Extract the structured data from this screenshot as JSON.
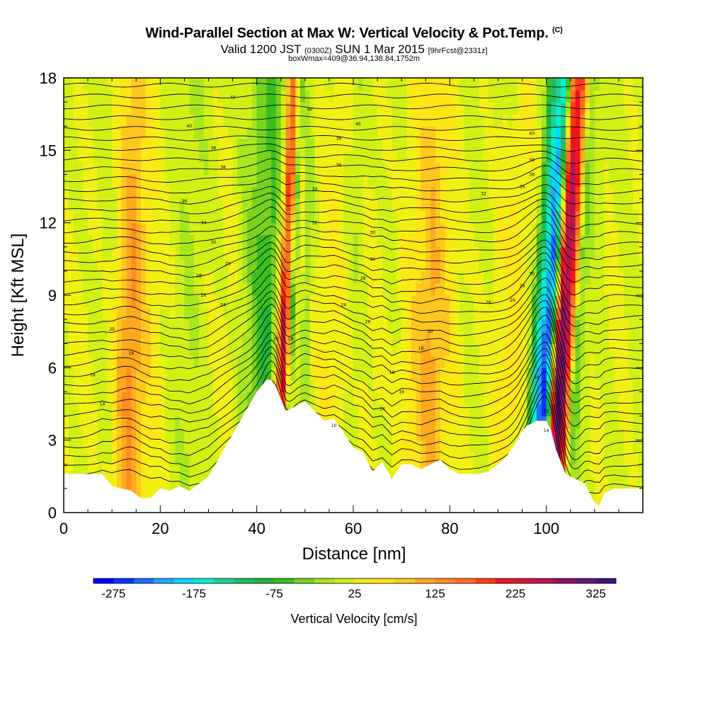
{
  "title": {
    "main": "Wind-Parallel Section at Max W: Vertical Velocity & Pot.Temp.",
    "main_sup": "(C)",
    "valid_a": "Valid 1200 JST",
    "valid_b": "(0300Z)",
    "valid_c": "SUN 1 Mar 2015",
    "valid_d": "[9hrFcst@2331z]",
    "box": "boxWmax=409@36.94,138.84,1752m"
  },
  "chart_data": {
    "type": "heatmap",
    "xlabel": "Distance [nm]",
    "ylabel": "Height [Kft MSL]",
    "xlim": [
      0,
      120
    ],
    "ylim": [
      0,
      18
    ],
    "xticks": [
      0,
      20,
      40,
      60,
      80,
      100
    ],
    "yticks": [
      0,
      3,
      6,
      9,
      12,
      15,
      18
    ],
    "colorbar": {
      "label": "Vertical Velocity [cm/s]",
      "tick_values": [
        -275,
        -175,
        -75,
        25,
        125,
        225,
        325
      ],
      "levels": [
        -300,
        -275,
        -250,
        -225,
        -200,
        -175,
        -150,
        -125,
        -100,
        -75,
        -50,
        -25,
        0,
        25,
        50,
        75,
        100,
        125,
        150,
        175,
        200,
        225,
        250,
        275,
        300,
        325,
        350
      ],
      "colors": [
        "#0000ff",
        "#0a32ff",
        "#1e6eff",
        "#1ea8ff",
        "#00d8ff",
        "#00f0d0",
        "#1ed296",
        "#1ebe64",
        "#1eb43c",
        "#3cbe1e",
        "#78d21e",
        "#aae61e",
        "#d2f014",
        "#f0f014",
        "#ffe614",
        "#ffc81e",
        "#ffaa1e",
        "#ff8c1e",
        "#ff6e1e",
        "#ff3c14",
        "#f0141e",
        "#d2143c",
        "#b41450",
        "#8c1464",
        "#641478",
        "#3c1478"
      ]
    },
    "field": {
      "x": [
        0,
        4,
        8,
        10,
        12,
        14,
        16,
        18,
        22,
        26,
        30,
        34,
        38,
        40,
        42,
        43,
        44,
        45,
        46,
        47,
        48,
        50,
        52,
        56,
        60,
        64,
        68,
        72,
        76,
        80,
        84,
        88,
        92,
        94,
        96,
        97,
        98,
        99,
        100,
        101,
        102,
        103,
        104,
        105,
        106,
        107,
        108,
        110,
        112,
        116,
        120
      ],
      "y": [
        0,
        1,
        2,
        3,
        4,
        5,
        6,
        7,
        8,
        9,
        10,
        11,
        12,
        13,
        14,
        15,
        16,
        17,
        18
      ],
      "w_profile": [
        30,
        35,
        15,
        40,
        110,
        140,
        100,
        60,
        20,
        0,
        20,
        40,
        -20,
        -60,
        -80,
        -40,
        60,
        240,
        180,
        -60,
        40,
        -20,
        40,
        60,
        10,
        40,
        20,
        70,
        120,
        60,
        20,
        30,
        70,
        60,
        20,
        -80,
        -160,
        -230,
        -270,
        -100,
        240,
        320,
        280,
        140,
        -40,
        -20,
        10,
        20,
        30,
        25,
        20
      ]
    },
    "terrain": {
      "x": [
        0,
        8,
        10,
        14,
        16,
        18,
        20,
        22,
        24,
        26,
        28,
        30,
        32,
        34,
        36,
        38,
        40,
        42,
        43,
        44,
        46,
        48,
        50,
        52,
        54,
        56,
        58,
        60,
        62,
        64,
        66,
        68,
        70,
        72,
        74,
        76,
        78,
        80,
        82,
        84,
        86,
        88,
        90,
        92,
        94,
        95,
        96,
        98,
        100,
        101,
        102,
        104,
        106,
        108,
        110,
        111,
        112,
        114,
        116,
        120
      ],
      "h": [
        1.6,
        1.6,
        1.1,
        0.9,
        0.6,
        0.6,
        1.0,
        0.9,
        1.1,
        0.9,
        1.2,
        1.5,
        2.2,
        2.9,
        3.6,
        4.3,
        5.0,
        5.5,
        5.5,
        5.2,
        4.2,
        4.4,
        4.6,
        4.2,
        3.8,
        3.9,
        3.3,
        2.7,
        2.5,
        1.7,
        2.1,
        1.4,
        2.0,
        2.0,
        1.8,
        2.0,
        2.2,
        1.8,
        1.6,
        1.6,
        1.6,
        1.7,
        2.0,
        2.4,
        3.0,
        3.4,
        3.6,
        3.8,
        3.8,
        3.4,
        2.6,
        1.6,
        1.4,
        1.2,
        0.4,
        0.3,
        0.8,
        1.0,
        1.0,
        1.0
      ]
    },
    "theta_labels": [
      {
        "x": 35,
        "y": 17.2,
        "text": "42"
      },
      {
        "x": 51,
        "y": 16.7,
        "text": "40"
      },
      {
        "x": 61,
        "y": 16.1,
        "text": "40"
      },
      {
        "x": 26,
        "y": 16.0,
        "text": "40"
      },
      {
        "x": 31,
        "y": 15.1,
        "text": "38"
      },
      {
        "x": 57,
        "y": 15.5,
        "text": "38"
      },
      {
        "x": 57,
        "y": 14.4,
        "text": "36"
      },
      {
        "x": 33,
        "y": 14.3,
        "text": "38"
      },
      {
        "x": 97,
        "y": 15.7,
        "text": "40"
      },
      {
        "x": 97,
        "y": 14.6,
        "text": "38"
      },
      {
        "x": 97,
        "y": 14.0,
        "text": "36"
      },
      {
        "x": 25,
        "y": 12.9,
        "text": "36"
      },
      {
        "x": 29,
        "y": 12.0,
        "text": "34"
      },
      {
        "x": 52,
        "y": 13.4,
        "text": "34"
      },
      {
        "x": 52,
        "y": 12.0,
        "text": "32"
      },
      {
        "x": 87,
        "y": 13.2,
        "text": "32"
      },
      {
        "x": 95,
        "y": 13.5,
        "text": "34"
      },
      {
        "x": 31,
        "y": 11.2,
        "text": "30"
      },
      {
        "x": 34,
        "y": 10.3,
        "text": "28"
      },
      {
        "x": 64,
        "y": 11.6,
        "text": "30"
      },
      {
        "x": 64,
        "y": 10.5,
        "text": "30"
      },
      {
        "x": 28,
        "y": 9.8,
        "text": "28"
      },
      {
        "x": 29,
        "y": 9.0,
        "text": "26"
      },
      {
        "x": 33,
        "y": 8.6,
        "text": "24"
      },
      {
        "x": 62,
        "y": 9.7,
        "text": "28"
      },
      {
        "x": 58,
        "y": 8.6,
        "text": "24"
      },
      {
        "x": 97,
        "y": 9.9,
        "text": "30"
      },
      {
        "x": 95,
        "y": 9.4,
        "text": "28"
      },
      {
        "x": 93,
        "y": 8.8,
        "text": "26"
      },
      {
        "x": 88,
        "y": 8.7,
        "text": "26"
      },
      {
        "x": 63,
        "y": 7.9,
        "text": "26"
      },
      {
        "x": 76,
        "y": 7.5,
        "text": "20"
      },
      {
        "x": 10,
        "y": 7.6,
        "text": "20"
      },
      {
        "x": 44,
        "y": 7.2,
        "text": "20"
      },
      {
        "x": 47,
        "y": 7.2,
        "text": "18"
      },
      {
        "x": 14,
        "y": 6.6,
        "text": "18"
      },
      {
        "x": 74,
        "y": 6.8,
        "text": "16"
      },
      {
        "x": 6,
        "y": 5.7,
        "text": "16"
      },
      {
        "x": 68,
        "y": 5.8,
        "text": "18"
      },
      {
        "x": 70,
        "y": 5.0,
        "text": "16"
      },
      {
        "x": 98,
        "y": 5.6,
        "text": "16"
      },
      {
        "x": 103,
        "y": 5.6,
        "text": "20"
      },
      {
        "x": 8,
        "y": 4.5,
        "text": "14"
      },
      {
        "x": 66,
        "y": 4.3,
        "text": "14"
      },
      {
        "x": 100,
        "y": 4.2,
        "text": "12"
      },
      {
        "x": 100,
        "y": 3.4,
        "text": "14"
      },
      {
        "x": 56,
        "y": 3.6,
        "text": "10"
      }
    ]
  }
}
